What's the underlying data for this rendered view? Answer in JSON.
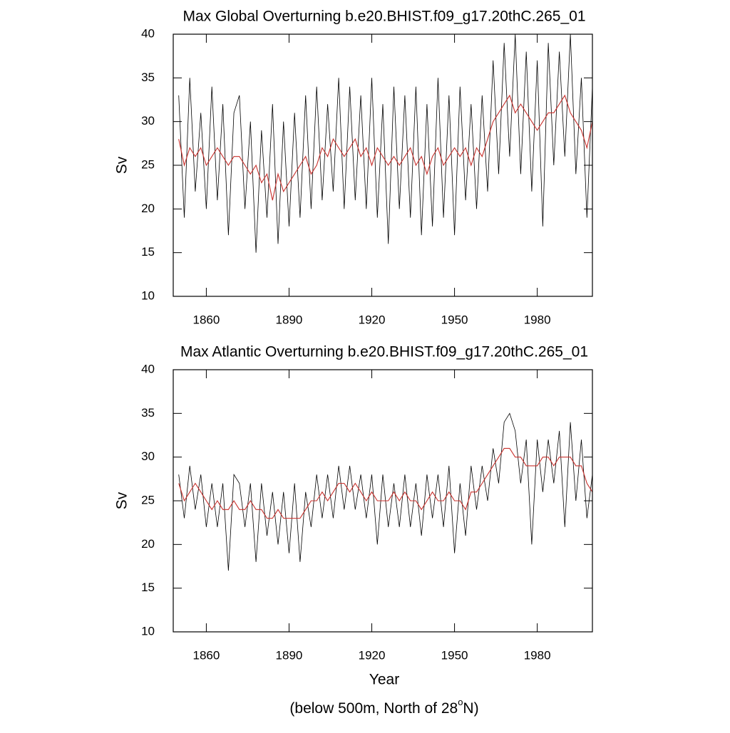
{
  "chart_data": [
    {
      "type": "line",
      "title": "Max Global Overturning b.e20.BHIST.f09_g17.20thC.265_01",
      "ylabel": "Sv",
      "x": [
        1850,
        1852,
        1854,
        1856,
        1858,
        1860,
        1862,
        1864,
        1866,
        1868,
        1870,
        1872,
        1874,
        1876,
        1878,
        1880,
        1882,
        1884,
        1886,
        1888,
        1890,
        1892,
        1894,
        1896,
        1898,
        1900,
        1902,
        1904,
        1906,
        1908,
        1910,
        1912,
        1914,
        1916,
        1918,
        1920,
        1922,
        1924,
        1926,
        1928,
        1930,
        1932,
        1934,
        1936,
        1938,
        1940,
        1942,
        1944,
        1946,
        1948,
        1950,
        1952,
        1954,
        1956,
        1958,
        1960,
        1962,
        1964,
        1966,
        1968,
        1970,
        1972,
        1974,
        1976,
        1978,
        1980,
        1982,
        1984,
        1986,
        1988,
        1990,
        1992,
        1994,
        1996,
        1998,
        2000
      ],
      "series": [
        {
          "color": "#000000",
          "values": [
            33,
            19,
            35,
            22,
            31,
            20,
            34,
            21,
            32,
            17,
            31,
            33,
            20,
            30,
            15,
            29,
            19,
            32,
            16,
            30,
            18,
            31,
            19,
            33,
            20,
            34,
            21,
            32,
            22,
            35,
            20,
            34,
            21,
            33,
            20,
            35,
            19,
            32,
            16,
            34,
            20,
            33,
            19,
            34,
            17,
            32,
            18,
            35,
            19,
            33,
            17,
            34,
            21,
            32,
            20,
            33,
            22,
            37,
            24,
            39,
            26,
            40,
            24,
            38,
            22,
            37,
            18,
            39,
            25,
            38,
            26,
            40,
            24,
            35,
            19,
            34
          ]
        },
        {
          "color": "#c8302c",
          "values": [
            28,
            25,
            27,
            26,
            27,
            25,
            26,
            27,
            26,
            25,
            26,
            26,
            25,
            24,
            25,
            23,
            24,
            21,
            24,
            22,
            23,
            24,
            25,
            26,
            24,
            25,
            27,
            26,
            28,
            27,
            26,
            27,
            28,
            26,
            27,
            25,
            27,
            26,
            25,
            26,
            25,
            26,
            27,
            25,
            26,
            24,
            26,
            27,
            25,
            26,
            27,
            26,
            27,
            25,
            27,
            26,
            28,
            30,
            31,
            32,
            33,
            31,
            32,
            31,
            30,
            29,
            30,
            31,
            31,
            32,
            33,
            31,
            30,
            29,
            27,
            30
          ]
        }
      ],
      "xlim": [
        1848,
        2000
      ],
      "xticks": [
        1860,
        1890,
        1920,
        1950,
        1980
      ],
      "ylim": [
        10,
        40
      ],
      "yticks": [
        10,
        15,
        20,
        25,
        30,
        35,
        40
      ]
    },
    {
      "type": "line",
      "title": "Max Atlantic Overturning b.e20.BHIST.f09_g17.20thC.265_01",
      "ylabel": "Sv",
      "xlabel": "Year",
      "x": [
        1850,
        1852,
        1854,
        1856,
        1858,
        1860,
        1862,
        1864,
        1866,
        1868,
        1870,
        1872,
        1874,
        1876,
        1878,
        1880,
        1882,
        1884,
        1886,
        1888,
        1890,
        1892,
        1894,
        1896,
        1898,
        1900,
        1902,
        1904,
        1906,
        1908,
        1910,
        1912,
        1914,
        1916,
        1918,
        1920,
        1922,
        1924,
        1926,
        1928,
        1930,
        1932,
        1934,
        1936,
        1938,
        1940,
        1942,
        1944,
        1946,
        1948,
        1950,
        1952,
        1954,
        1956,
        1958,
        1960,
        1962,
        1964,
        1966,
        1968,
        1970,
        1972,
        1974,
        1976,
        1978,
        1980,
        1982,
        1984,
        1986,
        1988,
        1990,
        1992,
        1994,
        1996,
        1998,
        2000
      ],
      "series": [
        {
          "color": "#000000",
          "values": [
            28,
            23,
            29,
            24,
            28,
            22,
            27,
            22,
            27,
            17,
            28,
            27,
            22,
            27,
            18,
            27,
            21,
            26,
            20,
            26,
            19,
            27,
            18,
            26,
            22,
            28,
            23,
            28,
            23,
            29,
            24,
            29,
            24,
            28,
            23,
            28,
            20,
            28,
            22,
            27,
            22,
            28,
            22,
            27,
            21,
            28,
            23,
            28,
            22,
            29,
            19,
            27,
            21,
            29,
            24,
            29,
            25,
            31,
            27,
            34,
            35,
            33,
            27,
            32,
            20,
            32,
            26,
            32,
            27,
            33,
            22,
            34,
            25,
            32,
            23,
            28
          ]
        },
        {
          "color": "#c8302c",
          "values": [
            27,
            25,
            26,
            27,
            26,
            25,
            24,
            25,
            24,
            24,
            25,
            24,
            24,
            25,
            24,
            24,
            23,
            23,
            24,
            23,
            23,
            23,
            23,
            24,
            25,
            25,
            26,
            25,
            26,
            27,
            27,
            26,
            27,
            26,
            25,
            26,
            25,
            25,
            25,
            26,
            25,
            26,
            25,
            25,
            24,
            25,
            26,
            25,
            25,
            26,
            25,
            25,
            24,
            26,
            26,
            27,
            28,
            29,
            30,
            31,
            31,
            30,
            30,
            29,
            29,
            29,
            30,
            30,
            29,
            30,
            30,
            30,
            29,
            29,
            27,
            26
          ]
        }
      ],
      "xlim": [
        1848,
        2000
      ],
      "xticks": [
        1860,
        1890,
        1920,
        1950,
        1980
      ],
      "ylim": [
        10,
        40
      ],
      "yticks": [
        10,
        15,
        20,
        25,
        30,
        35,
        40
      ]
    }
  ],
  "footnote": {
    "text": "(below 500m, North of 28",
    "superscript": "o",
    "suffix": "N)"
  }
}
